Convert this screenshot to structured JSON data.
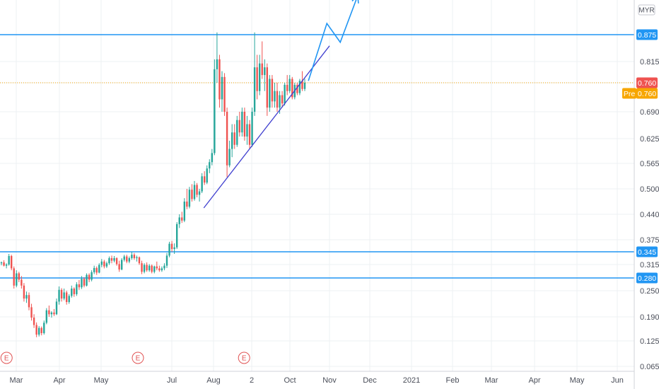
{
  "chart_data": {
    "type": "candlestick",
    "currency": "MYR",
    "y_ticks": [
      "0.875",
      "0.815",
      "0.760",
      "0.690",
      "0.625",
      "0.565",
      "0.500",
      "0.440",
      "0.375",
      "0.345",
      "0.315",
      "0.280",
      "0.250",
      "0.190",
      "0.125",
      "0.065"
    ],
    "ylim": [
      0.065,
      0.91
    ],
    "x_ticks": [
      "Mar",
      "Apr",
      "May",
      "Jul",
      "Aug",
      "2",
      "Oct",
      "Nov",
      "Dec",
      "2021",
      "Feb",
      "Mar",
      "Apr",
      "May",
      "Jun"
    ],
    "last_price": "0.760",
    "pre_market": {
      "label": "Pre",
      "value": "0.760"
    },
    "horizontal_levels": [
      {
        "value": "0.875",
        "color": "#2196f3"
      },
      {
        "value": "0.345",
        "color": "#2196f3"
      },
      {
        "value": "0.280",
        "color": "#2196f3"
      }
    ],
    "current_price_line": {
      "value": 0.76,
      "color": "#f7a600"
    },
    "trendline": {
      "from": {
        "x": "Jul-24",
        "y": 0.455
      },
      "to": {
        "x": "Oct-31",
        "y": 0.85
      },
      "color": "#3f3fcf"
    },
    "projection": {
      "points": [
        [
          "Oct-15",
          0.765
        ],
        [
          "Oct-29",
          0.9
        ],
        [
          "Nov-9",
          0.858
        ],
        [
          "Nov-22",
          0.962
        ]
      ],
      "color": "#2196f3"
    },
    "events": [
      {
        "label": "E",
        "date": "Feb-24"
      },
      {
        "label": "E",
        "date": "May-27"
      },
      {
        "label": "E",
        "date": "Aug-25"
      }
    ],
    "up_color": "#26a69a",
    "down_color": "#ef5350"
  },
  "candles": [
    [
      0.318,
      0.322,
      0.313,
      0.32
    ],
    [
      0.32,
      0.325,
      0.31,
      0.312
    ],
    [
      0.312,
      0.318,
      0.305,
      0.315
    ],
    [
      0.315,
      0.34,
      0.312,
      0.335
    ],
    [
      0.335,
      0.338,
      0.3,
      0.305
    ],
    [
      0.305,
      0.31,
      0.255,
      0.262
    ],
    [
      0.262,
      0.3,
      0.258,
      0.292
    ],
    [
      0.292,
      0.296,
      0.27,
      0.276
    ],
    [
      0.276,
      0.285,
      0.255,
      0.262
    ],
    [
      0.262,
      0.268,
      0.225,
      0.232
    ],
    [
      0.232,
      0.248,
      0.222,
      0.24
    ],
    [
      0.24,
      0.246,
      0.205,
      0.212
    ],
    [
      0.212,
      0.22,
      0.18,
      0.188
    ],
    [
      0.188,
      0.196,
      0.16,
      0.168
    ],
    [
      0.168,
      0.175,
      0.135,
      0.142
    ],
    [
      0.142,
      0.165,
      0.137,
      0.16
    ],
    [
      0.16,
      0.164,
      0.14,
      0.146
    ],
    [
      0.146,
      0.18,
      0.142,
      0.174
    ],
    [
      0.174,
      0.21,
      0.17,
      0.205
    ],
    [
      0.205,
      0.216,
      0.19,
      0.196
    ],
    [
      0.196,
      0.203,
      0.188,
      0.2
    ],
    [
      0.2,
      0.208,
      0.192,
      0.196
    ],
    [
      0.196,
      0.232,
      0.194,
      0.225
    ],
    [
      0.225,
      0.26,
      0.218,
      0.252
    ],
    [
      0.252,
      0.256,
      0.225,
      0.232
    ],
    [
      0.232,
      0.255,
      0.228,
      0.246
    ],
    [
      0.246,
      0.25,
      0.218,
      0.224
    ],
    [
      0.224,
      0.242,
      0.22,
      0.238
    ],
    [
      0.238,
      0.262,
      0.234,
      0.255
    ],
    [
      0.255,
      0.258,
      0.236,
      0.242
    ],
    [
      0.242,
      0.27,
      0.238,
      0.265
    ],
    [
      0.265,
      0.275,
      0.252,
      0.258
    ],
    [
      0.258,
      0.285,
      0.254,
      0.278
    ],
    [
      0.278,
      0.282,
      0.258,
      0.262
    ],
    [
      0.262,
      0.292,
      0.26,
      0.288
    ],
    [
      0.288,
      0.292,
      0.27,
      0.276
    ],
    [
      0.276,
      0.3,
      0.272,
      0.295
    ],
    [
      0.295,
      0.312,
      0.29,
      0.306
    ],
    [
      0.306,
      0.31,
      0.288,
      0.294
    ],
    [
      0.294,
      0.318,
      0.292,
      0.314
    ],
    [
      0.314,
      0.328,
      0.308,
      0.322
    ],
    [
      0.322,
      0.326,
      0.305,
      0.31
    ],
    [
      0.31,
      0.322,
      0.306,
      0.318
    ],
    [
      0.318,
      0.334,
      0.314,
      0.33
    ],
    [
      0.33,
      0.336,
      0.318,
      0.324
    ],
    [
      0.324,
      0.335,
      0.32,
      0.33
    ],
    [
      0.33,
      0.332,
      0.312,
      0.316
    ],
    [
      0.316,
      0.324,
      0.296,
      0.302
    ],
    [
      0.302,
      0.33,
      0.3,
      0.326
    ],
    [
      0.326,
      0.338,
      0.322,
      0.334
    ],
    [
      0.334,
      0.338,
      0.318,
      0.322
    ],
    [
      0.322,
      0.334,
      0.318,
      0.33
    ],
    [
      0.33,
      0.345,
      0.326,
      0.338
    ],
    [
      0.338,
      0.342,
      0.326,
      0.33
    ],
    [
      0.33,
      0.336,
      0.322,
      0.332
    ],
    [
      0.332,
      0.334,
      0.314,
      0.318
    ],
    [
      0.318,
      0.324,
      0.29,
      0.296
    ],
    [
      0.296,
      0.318,
      0.292,
      0.314
    ],
    [
      0.314,
      0.32,
      0.296,
      0.3
    ],
    [
      0.3,
      0.316,
      0.296,
      0.312
    ],
    [
      0.312,
      0.315,
      0.292,
      0.296
    ],
    [
      0.296,
      0.312,
      0.292,
      0.31
    ],
    [
      0.31,
      0.322,
      0.3,
      0.305
    ],
    [
      0.305,
      0.312,
      0.296,
      0.3
    ],
    [
      0.3,
      0.31,
      0.296,
      0.305
    ],
    [
      0.305,
      0.318,
      0.3,
      0.312
    ],
    [
      0.312,
      0.342,
      0.306,
      0.336
    ],
    [
      0.336,
      0.37,
      0.332,
      0.365
    ],
    [
      0.365,
      0.372,
      0.345,
      0.352
    ],
    [
      0.352,
      0.366,
      0.34,
      0.356
    ],
    [
      0.356,
      0.42,
      0.352,
      0.415
    ],
    [
      0.415,
      0.44,
      0.405,
      0.432
    ],
    [
      0.432,
      0.446,
      0.418,
      0.424
    ],
    [
      0.424,
      0.478,
      0.42,
      0.47
    ],
    [
      0.47,
      0.5,
      0.452,
      0.458
    ],
    [
      0.458,
      0.505,
      0.454,
      0.498
    ],
    [
      0.498,
      0.512,
      0.47,
      0.476
    ],
    [
      0.476,
      0.52,
      0.472,
      0.51
    ],
    [
      0.51,
      0.515,
      0.48,
      0.486
    ],
    [
      0.486,
      0.5,
      0.47,
      0.494
    ],
    [
      0.494,
      0.54,
      0.49,
      0.532
    ],
    [
      0.532,
      0.545,
      0.51,
      0.516
    ],
    [
      0.516,
      0.56,
      0.512,
      0.552
    ],
    [
      0.552,
      0.575,
      0.54,
      0.568
    ],
    [
      0.568,
      0.6,
      0.56,
      0.59
    ],
    [
      0.59,
      0.82,
      0.585,
      0.795
    ],
    [
      0.795,
      0.88,
      0.76,
      0.82
    ],
    [
      0.82,
      0.83,
      0.7,
      0.72
    ],
    [
      0.72,
      0.79,
      0.69,
      0.775
    ],
    [
      0.775,
      0.785,
      0.68,
      0.69
    ],
    [
      0.69,
      0.7,
      0.53,
      0.56
    ],
    [
      0.56,
      0.62,
      0.555,
      0.6
    ],
    [
      0.6,
      0.66,
      0.58,
      0.64
    ],
    [
      0.64,
      0.66,
      0.6,
      0.61
    ],
    [
      0.61,
      0.68,
      0.605,
      0.67
    ],
    [
      0.67,
      0.69,
      0.63,
      0.64
    ],
    [
      0.64,
      0.7,
      0.63,
      0.69
    ],
    [
      0.69,
      0.7,
      0.62,
      0.63
    ],
    [
      0.63,
      0.68,
      0.61,
      0.66
    ],
    [
      0.66,
      0.67,
      0.6,
      0.61
    ],
    [
      0.61,
      0.7,
      0.605,
      0.69
    ],
    [
      0.69,
      0.88,
      0.68,
      0.8
    ],
    [
      0.8,
      0.83,
      0.72,
      0.74
    ],
    [
      0.74,
      0.83,
      0.73,
      0.81
    ],
    [
      0.81,
      0.86,
      0.77,
      0.78
    ],
    [
      0.78,
      0.82,
      0.74,
      0.8
    ],
    [
      0.8,
      0.81,
      0.68,
      0.7
    ],
    [
      0.7,
      0.78,
      0.69,
      0.77
    ],
    [
      0.77,
      0.78,
      0.7,
      0.715
    ],
    [
      0.715,
      0.76,
      0.7,
      0.74
    ],
    [
      0.74,
      0.76,
      0.69,
      0.7
    ],
    [
      0.7,
      0.74,
      0.685,
      0.73
    ],
    [
      0.73,
      0.74,
      0.7,
      0.71
    ],
    [
      0.71,
      0.76,
      0.705,
      0.755
    ],
    [
      0.755,
      0.78,
      0.73,
      0.74
    ],
    [
      0.74,
      0.78,
      0.735,
      0.77
    ],
    [
      0.77,
      0.775,
      0.72,
      0.725
    ],
    [
      0.725,
      0.76,
      0.72,
      0.755
    ],
    [
      0.755,
      0.76,
      0.73,
      0.735
    ],
    [
      0.735,
      0.77,
      0.73,
      0.765
    ],
    [
      0.765,
      0.79,
      0.74,
      0.745
    ],
    [
      0.745,
      0.77,
      0.74,
      0.76
    ]
  ]
}
